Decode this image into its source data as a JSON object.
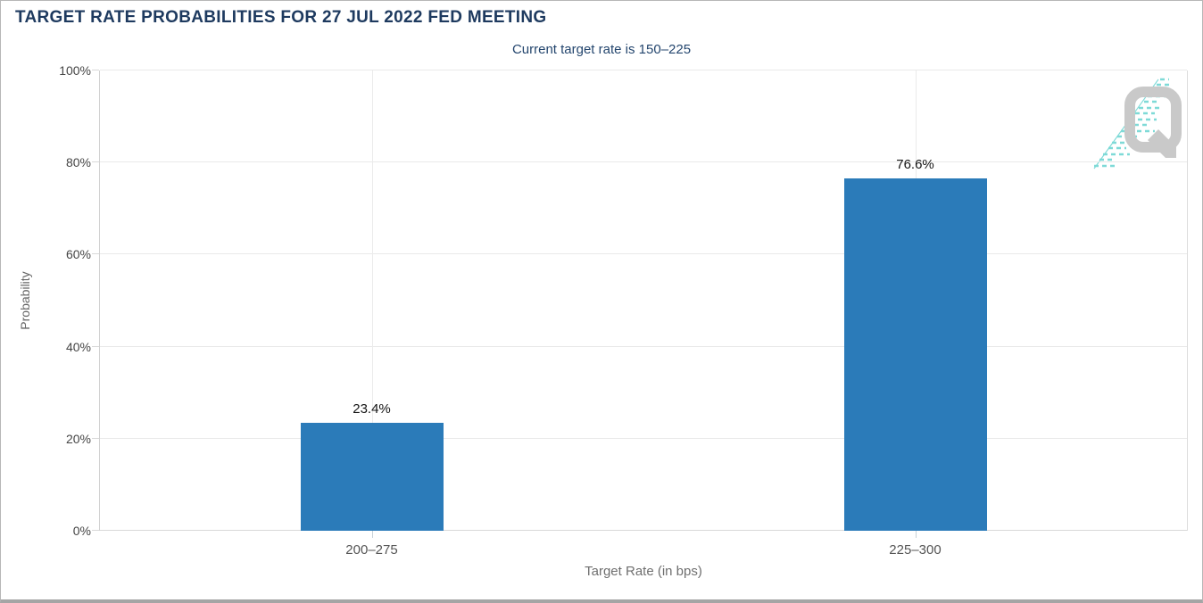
{
  "header": {
    "title": "TARGET RATE PROBABILITIES FOR 27 JUL 2022 FED MEETING",
    "subtitle": "Current target rate is 150–225"
  },
  "chart_data": {
    "type": "bar",
    "title": "TARGET RATE PROBABILITIES FOR 27 JUL 2022 FED MEETING",
    "subtitle": "Current target rate is 150–225",
    "categories": [
      "200–275",
      "225–300"
    ],
    "values": [
      23.4,
      76.6
    ],
    "value_labels": [
      "23.4%",
      "76.6%"
    ],
    "xlabel": "Target Rate (in bps)",
    "ylabel": "Probability",
    "ylim": [
      0,
      100
    ],
    "yticks": [
      0,
      20,
      40,
      60,
      80,
      100
    ],
    "ytick_labels": [
      "0%",
      "20%",
      "40%",
      "60%",
      "80%",
      "100%"
    ],
    "bar_color": "#2b7bb9",
    "grid": true,
    "legend_position": "none"
  },
  "colors": {
    "title": "#1e3a5f",
    "subtitle": "#24466e",
    "gridline": "#e9e9e9",
    "axis_line": "#d2d2d2",
    "tick_label": "#454545",
    "category_label": "#555555",
    "axis_title": "#6f6f6f",
    "value_label": "#141414",
    "window_border": "#a5a5a5"
  },
  "watermark": {
    "icon": "q-logo-watermark",
    "q_color": "#c9c9c9",
    "dash_color": "#7edad7"
  }
}
